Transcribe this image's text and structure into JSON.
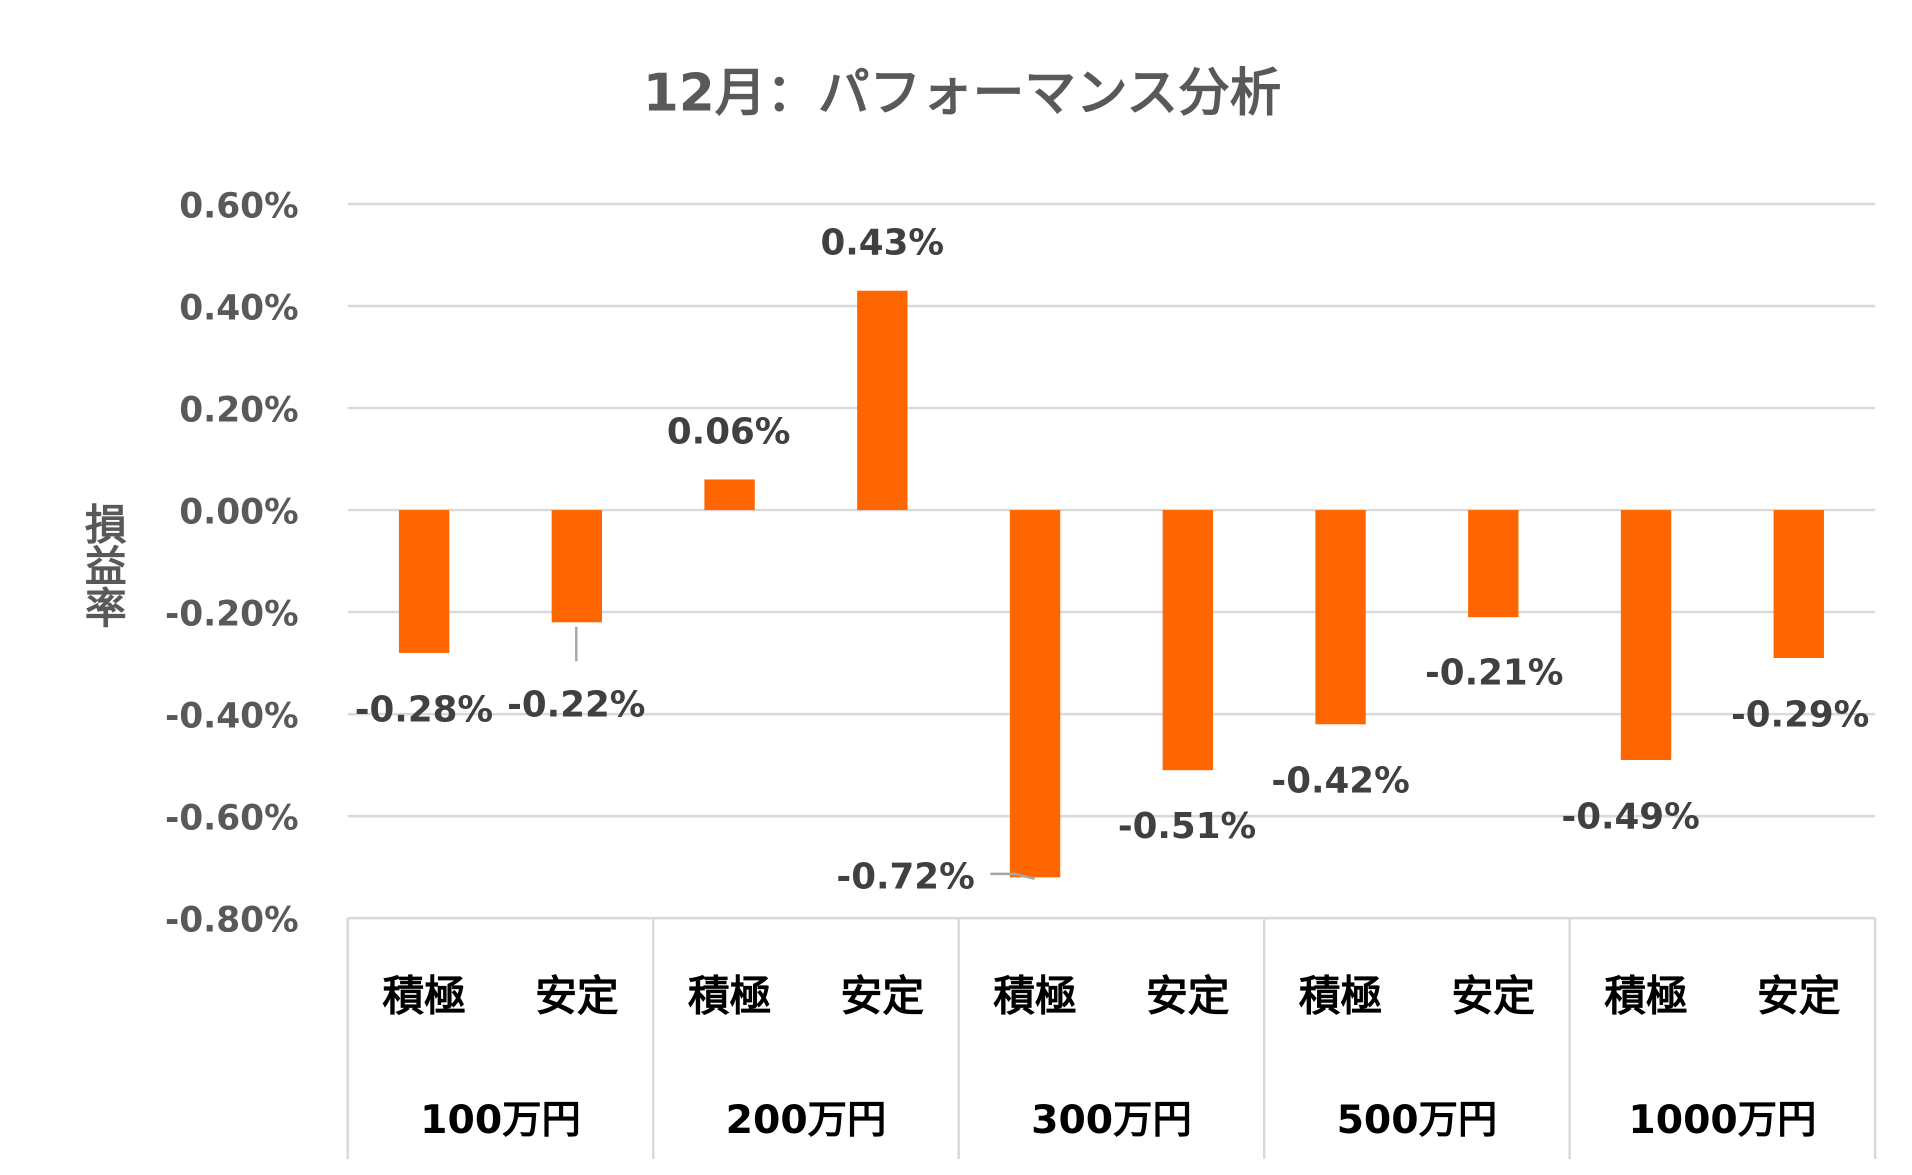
{
  "chart_data": {
    "type": "bar",
    "title": "12月：パフォーマンス分析",
    "ylabel": "損益率",
    "xlabel": "",
    "ylim": [
      -0.8,
      0.6
    ],
    "yticks": [
      "0.60%",
      "0.40%",
      "0.20%",
      "0.00%",
      "-0.20%",
      "-0.40%",
      "-0.60%",
      "-0.80%"
    ],
    "ytick_values": [
      0.6,
      0.4,
      0.2,
      0,
      -0.2,
      -0.4,
      -0.6,
      -0.8
    ],
    "grid": true,
    "bar_color": "#FF6600",
    "groups": [
      "100万円",
      "200万円",
      "300万円",
      "500万円",
      "1000万円"
    ],
    "categories": [
      "積極",
      "安定",
      "積極",
      "安定",
      "積極",
      "安定",
      "積極",
      "安定",
      "積極",
      "安定"
    ],
    "values": [
      -0.28,
      -0.22,
      0.06,
      0.43,
      -0.72,
      -0.51,
      -0.42,
      -0.21,
      -0.49,
      -0.29
    ],
    "data_labels": [
      "-0.28%",
      "-0.22%",
      "0.06%",
      "0.43%",
      "-0.72%",
      "-0.51%",
      "-0.42%",
      "-0.21%",
      "-0.49%",
      "-0.29%"
    ]
  }
}
